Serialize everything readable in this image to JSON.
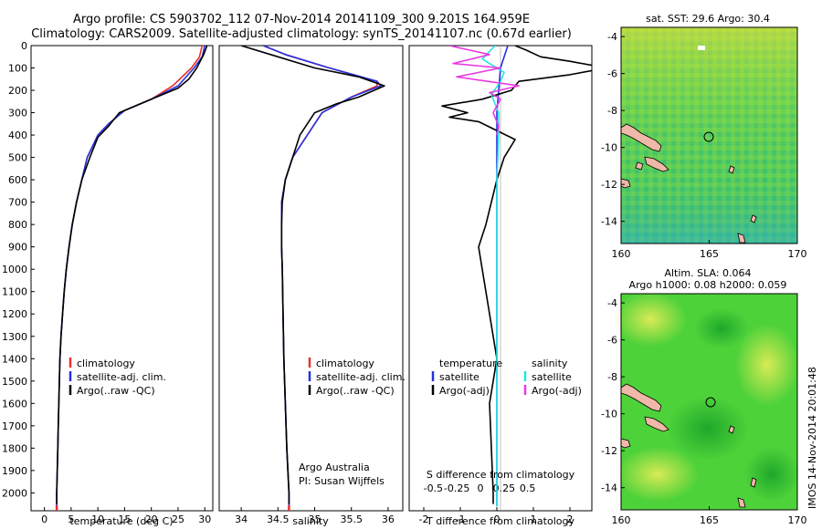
{
  "header": {
    "line1": "Argo profile: CS 5903702_112 07-Nov-2014 20141109_300 9.201S 164.959E",
    "line2": "Climatology: CARS2009. Satellite-adjusted climatology: synTS_20141107.nc (0.67d earlier)"
  },
  "legend_profiles": [
    "climatology",
    "satellite-adj. clim.",
    "Argo(..raw -QC)"
  ],
  "diff_legend": {
    "temperature_head": "temperature",
    "salinity_head": "salinity",
    "satellite": "satellite",
    "argo_adj": "Argo(-adj)"
  },
  "credits": {
    "org": "Argo Australia",
    "pi": "PI: Susan Wijffels"
  },
  "maps": {
    "sst_title": "sat. SST: 29.6 Argo: 30.4",
    "sla_title1": "Altim. SLA: 0.064",
    "sla_title2": "Argo h1000: 0.08 h2000: 0.059",
    "side_stamp": "IMOS 14-Nov-2014 20:01:48"
  },
  "colors": {
    "climatology": "#e8302a",
    "satellite": "#2431e0",
    "argo": "#000000",
    "sat_salinity": "#22e6e6",
    "argo_salinity": "#e83ae0"
  },
  "chart_data": [
    {
      "type": "line",
      "xlabel": "temperature (deg C)",
      "ylabel": "",
      "xlim": [
        -2.5,
        31.5
      ],
      "ylim": [
        2080,
        0
      ],
      "xticks": [
        0,
        5,
        10,
        15,
        20,
        25,
        30
      ],
      "yticks": [
        0,
        100,
        200,
        300,
        400,
        500,
        600,
        700,
        800,
        900,
        1000,
        1100,
        1200,
        1300,
        1400,
        1500,
        1600,
        1700,
        1800,
        1900,
        2000
      ],
      "series": [
        {
          "name": "climatology",
          "color": "#e8302a",
          "points": [
            [
              29.5,
              0
            ],
            [
              29,
              50
            ],
            [
              27.5,
              100
            ],
            [
              24,
              180
            ],
            [
              20,
              240
            ],
            [
              15,
              290
            ],
            [
              12,
              350
            ],
            [
              10,
              400
            ],
            [
              8,
              500
            ],
            [
              7,
              600
            ],
            [
              6,
              700
            ],
            [
              5.2,
              800
            ],
            [
              4.6,
              900
            ],
            [
              4.1,
              1000
            ],
            [
              3.7,
              1100
            ],
            [
              3.4,
              1200
            ],
            [
              3.1,
              1300
            ],
            [
              2.9,
              1400
            ],
            [
              2.8,
              1500
            ],
            [
              2.7,
              1600
            ],
            [
              2.6,
              1700
            ],
            [
              2.5,
              1800
            ],
            [
              2.4,
              1900
            ],
            [
              2.3,
              2000
            ],
            [
              2.3,
              2060
            ]
          ]
        },
        {
          "name": "satellite-adj. clim.",
          "color": "#2431e0",
          "points": [
            [
              30,
              0
            ],
            [
              29.5,
              50
            ],
            [
              28,
              100
            ],
            [
              25,
              180
            ],
            [
              20,
              240
            ],
            [
              15,
              290
            ],
            [
              12,
              350
            ],
            [
              10,
              400
            ],
            [
              8,
              500
            ],
            [
              7,
              600
            ],
            [
              6,
              700
            ],
            [
              5.2,
              800
            ],
            [
              4.6,
              900
            ],
            [
              4.1,
              1000
            ],
            [
              3.7,
              1100
            ],
            [
              3.4,
              1200
            ],
            [
              3.1,
              1300
            ],
            [
              2.9,
              1400
            ],
            [
              2.8,
              1500
            ],
            [
              2.7,
              1600
            ],
            [
              2.6,
              1700
            ],
            [
              2.5,
              1800
            ],
            [
              2.4,
              1900
            ],
            [
              2.3,
              2000
            ],
            [
              2.3,
              2060
            ]
          ]
        },
        {
          "name": "Argo(..raw -QC)",
          "color": "#000000",
          "points": [
            [
              30.4,
              0
            ],
            [
              29.8,
              40
            ],
            [
              28.5,
              100
            ],
            [
              27,
              150
            ],
            [
              25,
              190
            ],
            [
              20,
              240
            ],
            [
              14,
              300
            ],
            [
              12,
              360
            ],
            [
              10,
              410
            ],
            [
              8.5,
              500
            ],
            [
              7,
              600
            ],
            [
              6,
              700
            ],
            [
              5.2,
              800
            ],
            [
              4.6,
              900
            ],
            [
              4.1,
              1000
            ],
            [
              3.7,
              1100
            ],
            [
              3.4,
              1200
            ],
            [
              3.1,
              1300
            ],
            [
              2.9,
              1400
            ],
            [
              2.8,
              1500
            ],
            [
              2.7,
              1600
            ],
            [
              2.6,
              1700
            ],
            [
              2.5,
              1800
            ],
            [
              2.4,
              1900
            ],
            [
              2.3,
              2000
            ],
            [
              2.3,
              2050
            ]
          ]
        }
      ]
    },
    {
      "type": "line",
      "xlabel": "salinity",
      "ylabel": "",
      "xlim": [
        33.7,
        36.2
      ],
      "ylim": [
        2080,
        0
      ],
      "xticks": [
        34,
        34.5,
        35,
        35.5,
        36
      ],
      "xtick_labels": [
        "34",
        "34.5",
        "35",
        "35.5",
        "36"
      ],
      "series": [
        {
          "name": "climatology",
          "color": "#e8302a",
          "points": [
            [
              34.3,
              0
            ],
            [
              34.6,
              40
            ],
            [
              35.2,
              100
            ],
            [
              35.85,
              160
            ],
            [
              35.85,
              180
            ],
            [
              35.5,
              230
            ],
            [
              35.1,
              300
            ],
            [
              34.9,
              400
            ],
            [
              34.7,
              500
            ],
            [
              34.6,
              600
            ],
            [
              34.55,
              700
            ],
            [
              34.55,
              800
            ],
            [
              34.55,
              900
            ],
            [
              34.56,
              1000
            ],
            [
              34.57,
              1200
            ],
            [
              34.58,
              1400
            ],
            [
              34.6,
              1600
            ],
            [
              34.62,
              1800
            ],
            [
              34.65,
              2000
            ],
            [
              34.65,
              2060
            ]
          ]
        },
        {
          "name": "satellite-adj. clim.",
          "color": "#2431e0",
          "points": [
            [
              34.3,
              0
            ],
            [
              34.6,
              40
            ],
            [
              35.2,
              100
            ],
            [
              35.85,
              160
            ],
            [
              35.9,
              180
            ],
            [
              35.5,
              230
            ],
            [
              35.1,
              300
            ],
            [
              34.9,
              400
            ],
            [
              34.7,
              500
            ],
            [
              34.6,
              600
            ],
            [
              34.55,
              700
            ],
            [
              34.55,
              800
            ],
            [
              34.55,
              900
            ],
            [
              34.56,
              1000
            ],
            [
              34.57,
              1200
            ],
            [
              34.58,
              1400
            ],
            [
              34.6,
              1600
            ],
            [
              34.62,
              1800
            ],
            [
              34.65,
              2000
            ],
            [
              34.65,
              2060
            ]
          ]
        },
        {
          "name": "Argo(..raw -QC)",
          "color": "#000000",
          "points": [
            [
              34.0,
              0
            ],
            [
              34.4,
              40
            ],
            [
              35.0,
              100
            ],
            [
              35.6,
              140
            ],
            [
              35.95,
              180
            ],
            [
              35.6,
              230
            ],
            [
              35.3,
              260
            ],
            [
              35.0,
              300
            ],
            [
              34.8,
              400
            ],
            [
              34.7,
              500
            ],
            [
              34.6,
              600
            ],
            [
              34.56,
              700
            ],
            [
              34.55,
              800
            ],
            [
              34.55,
              900
            ],
            [
              34.56,
              1000
            ],
            [
              34.57,
              1200
            ],
            [
              34.58,
              1400
            ],
            [
              34.6,
              1600
            ],
            [
              34.62,
              1800
            ],
            [
              34.65,
              2000
            ],
            [
              34.65,
              2050
            ]
          ]
        }
      ]
    },
    {
      "type": "line",
      "xlabel": "T difference from climatology",
      "xlabel_top": "S difference from climatology",
      "xlim": [
        -2.4,
        2.6
      ],
      "ylim": [
        2080,
        0
      ],
      "xticks": [
        -2,
        -1,
        0,
        1,
        2
      ],
      "xticks_salinity": [
        -0.5,
        -0.25,
        0,
        0.25,
        0.5
      ],
      "xticks_salinity_labels": [
        "-0.5",
        "-0.25",
        "0",
        "0.25",
        "0.5"
      ],
      "series": [
        {
          "name": "temperature satellite",
          "color": "#2431e0",
          "points": [
            [
              0.3,
              0
            ],
            [
              0.1,
              100
            ],
            [
              0,
              300
            ],
            [
              0,
              2060
            ]
          ]
        },
        {
          "name": "temperature Argo(-adj)",
          "color": "#000000",
          "points": [
            [
              0.5,
              0
            ],
            [
              0.8,
              20
            ],
            [
              1.2,
              50
            ],
            [
              2,
              70
            ],
            [
              3,
              100
            ],
            [
              2.0,
              130
            ],
            [
              0.6,
              160
            ],
            [
              0.4,
              200
            ],
            [
              -0.4,
              240
            ],
            [
              -1.5,
              270
            ],
            [
              -0.8,
              300
            ],
            [
              -1.3,
              320
            ],
            [
              -0.5,
              340
            ],
            [
              0.5,
              420
            ],
            [
              0.2,
              500
            ],
            [
              0,
              600
            ],
            [
              -0.3,
              800
            ],
            [
              -0.5,
              900
            ],
            [
              -0.4,
              1000
            ],
            [
              -0.2,
              1200
            ],
            [
              0,
              1400
            ],
            [
              -0.2,
              1600
            ],
            [
              -0.15,
              1800
            ],
            [
              -0.1,
              2000
            ],
            [
              -0.1,
              2050
            ]
          ]
        },
        {
          "name": "salinity satellite",
          "color": "#22e6e6",
          "points": [
            [
              -0.05,
              0
            ],
            [
              -0.4,
              60
            ],
            [
              0.2,
              120
            ],
            [
              0.1,
              160
            ],
            [
              -0.15,
              220
            ],
            [
              0.05,
              300
            ],
            [
              0.05,
              400
            ],
            [
              0.0,
              600
            ],
            [
              0.0,
              2060
            ]
          ]
        },
        {
          "name": "salinity Argo(-adj)",
          "color": "#e83ae0",
          "points": [
            [
              -1.3,
              0
            ],
            [
              -0.2,
              40
            ],
            [
              -1.2,
              80
            ],
            [
              0.1,
              100
            ],
            [
              -1.1,
              140
            ],
            [
              0.6,
              180
            ],
            [
              -0.2,
              210
            ],
            [
              0.1,
              240
            ],
            [
              -0.1,
              300
            ],
            [
              0.05,
              360
            ],
            [
              0.0,
              400
            ]
          ]
        }
      ]
    },
    {
      "type": "heatmap",
      "title": "sat. SST: 29.6 Argo: 30.4",
      "xlim": [
        160,
        170
      ],
      "ylim": [
        -15.2,
        -3.5
      ],
      "xticks": [
        160,
        165,
        170
      ],
      "yticks": [
        -4,
        -6,
        -8,
        -10,
        -12,
        -14
      ],
      "argo_position": [
        164.959,
        -9.201
      ]
    },
    {
      "type": "heatmap",
      "title": "Altim. SLA: 0.064",
      "subtitle": "Argo h1000: 0.08 h2000: 0.059",
      "xlim": [
        160,
        170
      ],
      "ylim": [
        -15.2,
        -3.5
      ],
      "xticks": [
        160,
        165,
        170
      ],
      "yticks": [
        -4,
        -6,
        -8,
        -10,
        -12,
        -14
      ],
      "argo_position": [
        164.959,
        -9.201
      ]
    }
  ]
}
